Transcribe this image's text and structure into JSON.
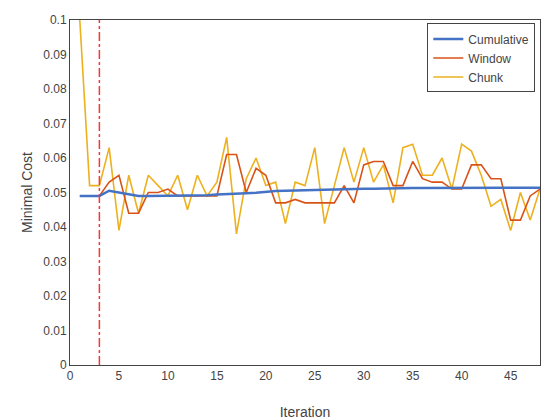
{
  "chart_data": {
    "type": "line",
    "x_label": "Iteration",
    "y_label": "Minimal Cost",
    "x": [
      1,
      2,
      3,
      4,
      5,
      6,
      7,
      8,
      9,
      10,
      11,
      12,
      13,
      14,
      15,
      16,
      17,
      18,
      19,
      20,
      21,
      22,
      23,
      24,
      25,
      26,
      27,
      28,
      29,
      30,
      31,
      32,
      33,
      34,
      35,
      36,
      37,
      38,
      39,
      40,
      41,
      42,
      43,
      44,
      45,
      46,
      47,
      48
    ],
    "series": [
      {
        "name": "Chunk",
        "color": "#EDB120",
        "values": [
          0.1,
          0.052,
          0.052,
          0.063,
          0.039,
          0.055,
          0.044,
          0.055,
          0.052,
          0.049,
          0.055,
          0.045,
          0.055,
          0.049,
          0.053,
          0.066,
          0.038,
          0.054,
          0.06,
          0.052,
          0.053,
          0.041,
          0.053,
          0.052,
          0.063,
          0.041,
          0.052,
          0.063,
          0.053,
          0.063,
          0.053,
          0.058,
          0.047,
          0.063,
          0.064,
          0.055,
          0.055,
          0.06,
          0.051,
          0.064,
          0.062,
          0.055,
          0.046,
          0.048,
          0.039,
          0.05,
          0.042,
          0.051
        ]
      },
      {
        "name": "Window",
        "color": "#D95319",
        "values": [
          0.049,
          0.049,
          0.049,
          0.053,
          0.055,
          0.044,
          0.044,
          0.05,
          0.05,
          0.051,
          0.049,
          0.049,
          0.049,
          0.049,
          0.049,
          0.061,
          0.061,
          0.05,
          0.057,
          0.055,
          0.047,
          0.047,
          0.048,
          0.047,
          0.047,
          0.047,
          0.047,
          0.052,
          0.047,
          0.058,
          0.059,
          0.059,
          0.052,
          0.052,
          0.059,
          0.054,
          0.053,
          0.053,
          0.051,
          0.051,
          0.058,
          0.058,
          0.054,
          0.054,
          0.042,
          0.042,
          0.049,
          0.051
        ]
      },
      {
        "name": "Cumulative",
        "color": "#4472C4",
        "values": [
          0.049,
          0.049,
          0.049,
          0.0505,
          0.05,
          0.0493,
          0.049,
          0.049,
          0.049,
          0.049,
          0.049,
          0.049,
          0.049,
          0.0492,
          0.0494,
          0.0496,
          0.0497,
          0.0498,
          0.0499,
          0.0502,
          0.0504,
          0.0505,
          0.0506,
          0.0507,
          0.0508,
          0.0509,
          0.0509,
          0.051,
          0.051,
          0.0511,
          0.0511,
          0.0512,
          0.0512,
          0.0513,
          0.0513,
          0.0513,
          0.0513,
          0.0514,
          0.0514,
          0.0514,
          0.0514,
          0.0514,
          0.0514,
          0.0514,
          0.0514,
          0.0514,
          0.0514,
          0.0514
        ]
      }
    ],
    "vline": {
      "x": 3,
      "color": "#FF3333",
      "line_style": "dashdot"
    },
    "xlim": [
      0,
      48
    ],
    "ylim": [
      0,
      0.1
    ],
    "xticks": [
      0,
      5,
      10,
      15,
      20,
      25,
      30,
      35,
      40,
      45
    ],
    "yticks": [
      0,
      0.01,
      0.02,
      0.03,
      0.04,
      0.05,
      0.06,
      0.07,
      0.08,
      0.09,
      0.1
    ],
    "legend": "upper right",
    "grid": false
  }
}
